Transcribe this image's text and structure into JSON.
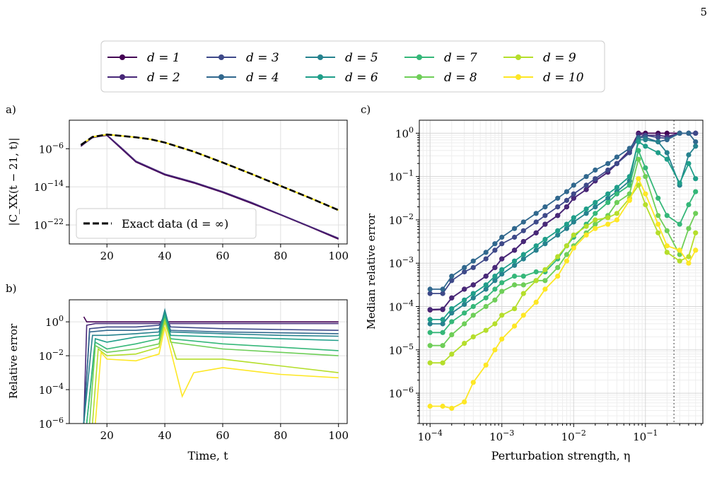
{
  "page": {
    "page_number": "5"
  },
  "colors": {
    "d1": "#440154",
    "d2": "#482878",
    "d3": "#3e4989",
    "d4": "#31688e",
    "d5": "#26828e",
    "d6": "#1f9e89",
    "d7": "#35b779",
    "d8": "#6ece58",
    "d9": "#b5de2b",
    "d10": "#fde725",
    "exact": "#000000"
  },
  "legend": {
    "entries": [
      "d = 1",
      "d = 2",
      "d = 3",
      "d = 4",
      "d = 5",
      "d = 6",
      "d = 7",
      "d = 8",
      "d = 9",
      "d = 10"
    ]
  },
  "chart_data": [
    {
      "panel_label": "a)",
      "type": "line",
      "ylabel": "|C_XX(t − 21, t)|",
      "xlim": [
        7,
        103
      ],
      "ylim_log10": [
        -26,
        0
      ],
      "y_scale": "log",
      "xticks": [
        "20",
        "40",
        "60",
        "80",
        "100"
      ],
      "yticks": [
        "10^-6",
        "10^-14",
        "10^-22"
      ],
      "legend_label": "Exact data (d = ∞)",
      "legend_placement": "lower-left",
      "series_note": "d = 1, 2 deviate downward after t ≈ 20; d ≥ 3 follow exact data",
      "series": [
        {
          "name": "Exact data (d = ∞)",
          "x": [
            11,
            15,
            20,
            25,
            30,
            35,
            40,
            50,
            60,
            70,
            80,
            90,
            100
          ],
          "y_log10": [
            -5.2,
            -3.5,
            -3.0,
            -3.3,
            -3.6,
            -4.0,
            -4.7,
            -6.6,
            -8.9,
            -11.3,
            -13.8,
            -16.3,
            -18.9
          ]
        },
        {
          "name": "d = 1",
          "x": [
            11,
            15,
            20,
            25,
            30,
            40,
            50,
            60,
            70,
            80,
            90,
            100
          ],
          "y_log10": [
            -5.5,
            -3.6,
            -3.2,
            -6.0,
            -8.8,
            -11.5,
            -13.2,
            -15.2,
            -17.5,
            -19.9,
            -22.4,
            -25.0
          ]
        },
        {
          "name": "d = 2",
          "x": [
            11,
            15,
            20,
            25,
            30,
            40,
            50,
            60,
            70,
            80,
            90,
            100
          ],
          "y_log10": [
            -5.4,
            -3.7,
            -3.1,
            -5.8,
            -8.6,
            -11.3,
            -13.0,
            -15.0,
            -17.3,
            -19.8,
            -22.3,
            -24.8
          ]
        }
      ]
    },
    {
      "panel_label": "b)",
      "type": "line",
      "xlabel": "Time, t",
      "ylabel": "Relative error",
      "xlim": [
        7,
        103
      ],
      "ylim_log10": [
        -6,
        1.3
      ],
      "y_scale": "log",
      "xticks": [
        "20",
        "40",
        "60",
        "80",
        "100"
      ],
      "yticks": [
        "10^0",
        "10^-2",
        "10^-4",
        "10^-6"
      ],
      "series": [
        {
          "name": "d = 1",
          "x": [
            12,
            13,
            16,
            20,
            30,
            40,
            60,
            80,
            100
          ],
          "y_log10": [
            0.3,
            0.0,
            0.0,
            0.0,
            0.0,
            0.0,
            0.0,
            0.0,
            0.0
          ]
        },
        {
          "name": "d = 2",
          "x": [
            12,
            13,
            16,
            20,
            30,
            40,
            60,
            80,
            100
          ],
          "y_log10": [
            -6,
            -0.2,
            -0.1,
            -0.1,
            -0.1,
            -0.1,
            -0.1,
            -0.1,
            -0.1
          ]
        },
        {
          "name": "d = 3",
          "x": [
            12,
            14,
            20,
            30,
            38,
            40,
            42,
            60,
            80,
            100
          ],
          "y_log10": [
            -6,
            -0.4,
            -0.3,
            -0.3,
            -0.2,
            0.4,
            -0.3,
            -0.4,
            -0.45,
            -0.5
          ]
        },
        {
          "name": "d = 4",
          "x": [
            12,
            14,
            20,
            30,
            38,
            40,
            42,
            60,
            80,
            100
          ],
          "y_log10": [
            -6,
            -0.6,
            -0.5,
            -0.5,
            -0.4,
            0.5,
            -0.5,
            -0.6,
            -0.65,
            -0.7
          ]
        },
        {
          "name": "d = 5",
          "x": [
            12,
            15,
            20,
            30,
            38,
            40,
            42,
            60,
            80,
            100
          ],
          "y_log10": [
            -6,
            -0.8,
            -0.8,
            -0.7,
            -0.6,
            0.7,
            -0.6,
            -0.7,
            -0.8,
            -0.85
          ]
        },
        {
          "name": "d = 6",
          "x": [
            13,
            16,
            20,
            30,
            38,
            40,
            42,
            60,
            80,
            100
          ],
          "y_log10": [
            -6,
            -1.0,
            -1.2,
            -0.9,
            -0.8,
            0.5,
            -0.8,
            -0.9,
            -1.0,
            -1.1
          ]
        },
        {
          "name": "d = 7",
          "x": [
            13,
            16,
            20,
            30,
            38,
            40,
            42,
            60,
            80,
            100
          ],
          "y_log10": [
            -6,
            -1.2,
            -1.6,
            -1.3,
            -1.0,
            0.3,
            -1.0,
            -1.3,
            -1.5,
            -1.7
          ]
        },
        {
          "name": "d = 8",
          "x": [
            14,
            16,
            20,
            30,
            38,
            40,
            42,
            60,
            80,
            100
          ],
          "y_log10": [
            -6,
            -1.4,
            -1.8,
            -1.6,
            -1.3,
            0.2,
            -1.2,
            -1.6,
            -1.8,
            -2.0
          ]
        },
        {
          "name": "d = 9",
          "x": [
            15,
            17,
            20,
            30,
            38,
            40,
            44,
            60,
            80,
            100
          ],
          "y_log10": [
            -6,
            -1.6,
            -2.0,
            -1.9,
            -1.5,
            0.0,
            -2.2,
            -2.2,
            -2.6,
            -3.0
          ]
        },
        {
          "name": "d = 10",
          "x": [
            16,
            18,
            20,
            30,
            38,
            40,
            46,
            50,
            60,
            80,
            100
          ],
          "y_log10": [
            -6,
            -1.8,
            -2.2,
            -2.3,
            -1.9,
            -0.3,
            -4.4,
            -3.0,
            -2.7,
            -3.1,
            -3.3
          ]
        }
      ]
    },
    {
      "panel_label": "c)",
      "type": "line",
      "xlabel": "Perturbation strength, η",
      "ylabel": "Median relative error",
      "x_scale": "log",
      "y_scale": "log",
      "xlim_log10": [
        -4.15,
        -0.2
      ],
      "ylim_log10": [
        -6.7,
        0.3
      ],
      "xticks": [
        "10^-4",
        "10^-3",
        "10^-2",
        "10^-1"
      ],
      "yticks": [
        "10^0",
        "10^-1",
        "10^-2",
        "10^-3",
        "10^-4",
        "10^-5",
        "10^-6"
      ],
      "vline_x": 0.25,
      "eta": [
        0.0001,
        0.00015,
        0.0002,
        0.0003,
        0.0004,
        0.0006,
        0.0008,
        0.001,
        0.0015,
        0.002,
        0.003,
        0.004,
        0.006,
        0.008,
        0.01,
        0.015,
        0.02,
        0.03,
        0.04,
        0.06,
        0.08,
        0.1,
        0.15,
        0.2,
        0.3,
        0.4,
        0.5
      ],
      "series": [
        {
          "name": "d = 1",
          "y_log10": [
            -4.08,
            -4.07,
            -3.8,
            -3.6,
            -3.5,
            -3.3,
            -3.1,
            -2.9,
            -2.7,
            -2.5,
            -2.3,
            -2.1,
            -1.9,
            -1.7,
            -1.5,
            -1.3,
            -1.1,
            -0.9,
            -0.7,
            -0.4,
            0.0,
            0.0,
            0.0,
            0.0,
            0.0,
            0.0,
            0.0
          ]
        },
        {
          "name": "d = 2",
          "y_log10": [
            -4.07,
            -4.06,
            -3.8,
            -3.6,
            -3.5,
            -3.3,
            -3.1,
            -2.9,
            -2.7,
            -2.5,
            -2.3,
            -2.1,
            -1.9,
            -1.7,
            -1.5,
            -1.3,
            -1.1,
            -0.9,
            -0.7,
            -0.4,
            -0.02,
            -0.05,
            -0.05,
            -0.08,
            0.0,
            0.0,
            0.0
          ]
        },
        {
          "name": "d = 3",
          "y_log10": [
            -3.7,
            -3.7,
            -3.4,
            -3.2,
            -3.1,
            -2.9,
            -2.7,
            -2.55,
            -2.4,
            -2.25,
            -2.05,
            -1.9,
            -1.7,
            -1.55,
            -1.4,
            -1.2,
            -1.05,
            -0.85,
            -0.7,
            -0.45,
            -0.1,
            -0.05,
            -0.1,
            -0.12,
            0.0,
            0.0,
            0.0
          ]
        },
        {
          "name": "d = 4",
          "y_log10": [
            -3.6,
            -3.6,
            -3.3,
            -3.1,
            -2.95,
            -2.75,
            -2.55,
            -2.4,
            -2.2,
            -2.05,
            -1.85,
            -1.7,
            -1.5,
            -1.35,
            -1.2,
            -1.0,
            -0.85,
            -0.7,
            -0.55,
            -0.35,
            -0.1,
            -0.1,
            -0.2,
            -0.15,
            0.0,
            0.0,
            -0.2
          ]
        },
        {
          "name": "d = 5",
          "y_log10": [
            -4.4,
            -4.4,
            -4.15,
            -3.95,
            -3.8,
            -3.6,
            -3.4,
            -3.25,
            -3.05,
            -2.9,
            -2.7,
            -2.55,
            -2.35,
            -2.2,
            -2.05,
            -1.85,
            -1.7,
            -1.5,
            -1.35,
            -1.1,
            -0.15,
            -0.15,
            -0.2,
            -0.45,
            -1.2,
            -0.5,
            -0.3
          ]
        },
        {
          "name": "d = 6",
          "y_log10": [
            -4.3,
            -4.3,
            -4.05,
            -3.85,
            -3.7,
            -3.5,
            -3.3,
            -3.15,
            -2.95,
            -2.8,
            -2.6,
            -2.45,
            -2.25,
            -2.1,
            -1.95,
            -1.75,
            -1.6,
            -1.4,
            -1.25,
            -1.0,
            -0.2,
            -0.3,
            -0.45,
            -0.6,
            -1.15,
            -0.7,
            -1.05
          ]
        },
        {
          "name": "d = 7",
          "y_log10": [
            -4.6,
            -4.6,
            -4.35,
            -4.15,
            -4.0,
            -3.8,
            -3.6,
            -3.45,
            -3.3,
            -3.3,
            -3.2,
            -3.2,
            -2.9,
            -2.6,
            -2.4,
            -2.1,
            -1.85,
            -1.6,
            -1.4,
            -1.2,
            -0.4,
            -0.8,
            -1.5,
            -1.9,
            -2.1,
            -1.65,
            -1.35
          ]
        },
        {
          "name": "d = 8",
          "y_log10": [
            -4.9,
            -4.9,
            -4.65,
            -4.4,
            -4.2,
            -4.0,
            -3.85,
            -3.65,
            -3.5,
            -3.5,
            -3.4,
            -3.4,
            -3.1,
            -2.8,
            -2.6,
            -2.3,
            -2.1,
            -1.9,
            -1.6,
            -1.4,
            -0.6,
            -1.0,
            -1.9,
            -2.25,
            -2.8,
            -2.2,
            -1.85
          ]
        },
        {
          "name": "d = 9",
          "y_log10": [
            -5.3,
            -5.3,
            -5.1,
            -4.85,
            -4.7,
            -4.55,
            -4.4,
            -4.2,
            -4.05,
            -3.7,
            -3.4,
            -3.15,
            -2.85,
            -2.6,
            -2.35,
            -2.15,
            -2.0,
            -1.95,
            -1.85,
            -1.5,
            -1.2,
            -1.65,
            -2.3,
            -2.75,
            -2.95,
            -2.85,
            -2.3
          ]
        },
        {
          "name": "d = 10",
          "y_log10": [
            -6.3,
            -6.3,
            -6.35,
            -6.2,
            -5.75,
            -5.35,
            -5.0,
            -4.75,
            -4.45,
            -4.2,
            -3.9,
            -3.6,
            -3.3,
            -2.95,
            -2.65,
            -2.35,
            -2.2,
            -2.1,
            -2.0,
            -1.55,
            -1.05,
            -1.4,
            -2.1,
            -2.6,
            -2.7,
            -3.0,
            -2.7
          ]
        }
      ]
    }
  ]
}
